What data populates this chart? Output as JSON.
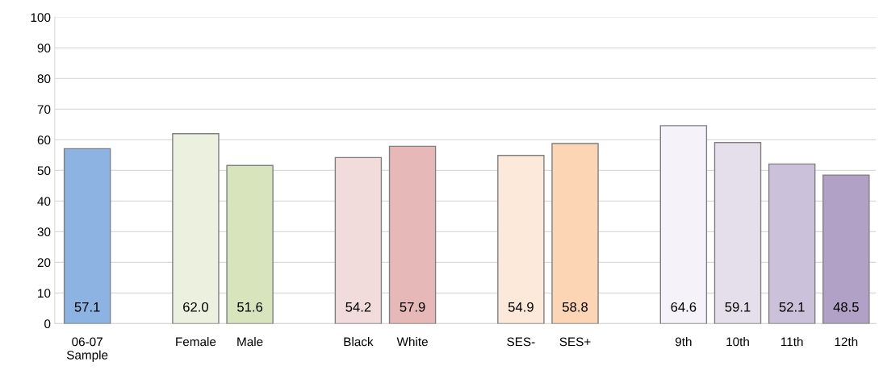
{
  "chart_data": {
    "type": "bar",
    "categories": [
      "06-07\nSample",
      null,
      "Female",
      "Male",
      null,
      "Black",
      "White",
      null,
      "SES-",
      "SES+",
      null,
      "9th",
      "10th",
      "11th",
      "12th"
    ],
    "values": [
      57.1,
      null,
      62.0,
      51.6,
      null,
      54.2,
      57.9,
      null,
      54.9,
      58.8,
      null,
      64.6,
      59.1,
      52.1,
      48.5
    ],
    "colors": [
      "#8db3e2",
      null,
      "#ebf1de",
      "#d7e4bc",
      null,
      "#f2dcdb",
      "#e6b9b8",
      null,
      "#fde9d9",
      "#fcd5b4",
      null,
      "#f5f3f9",
      "#e5dfec",
      "#ccc1da",
      "#b2a1c7"
    ],
    "ylim": [
      0,
      100
    ],
    "yticks": [
      0,
      10,
      20,
      30,
      40,
      50,
      60,
      70,
      80,
      90,
      100
    ],
    "grid": "y",
    "value_labels": [
      "57.1",
      null,
      "62.0",
      "51.6",
      null,
      "54.2",
      "57.9",
      null,
      "54.9",
      "58.8",
      null,
      "64.6",
      "59.1",
      "52.1",
      "48.5"
    ]
  }
}
